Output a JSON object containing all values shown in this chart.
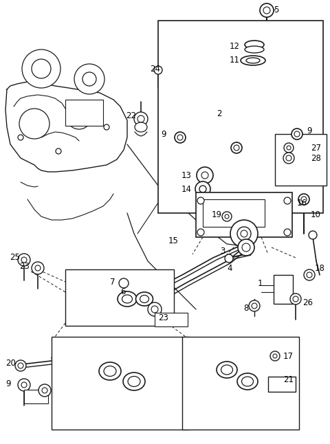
{
  "bg_color": "#ffffff",
  "line_color": "#1a1a1a",
  "fig_width": 4.8,
  "fig_height": 6.46,
  "dpi": 100
}
